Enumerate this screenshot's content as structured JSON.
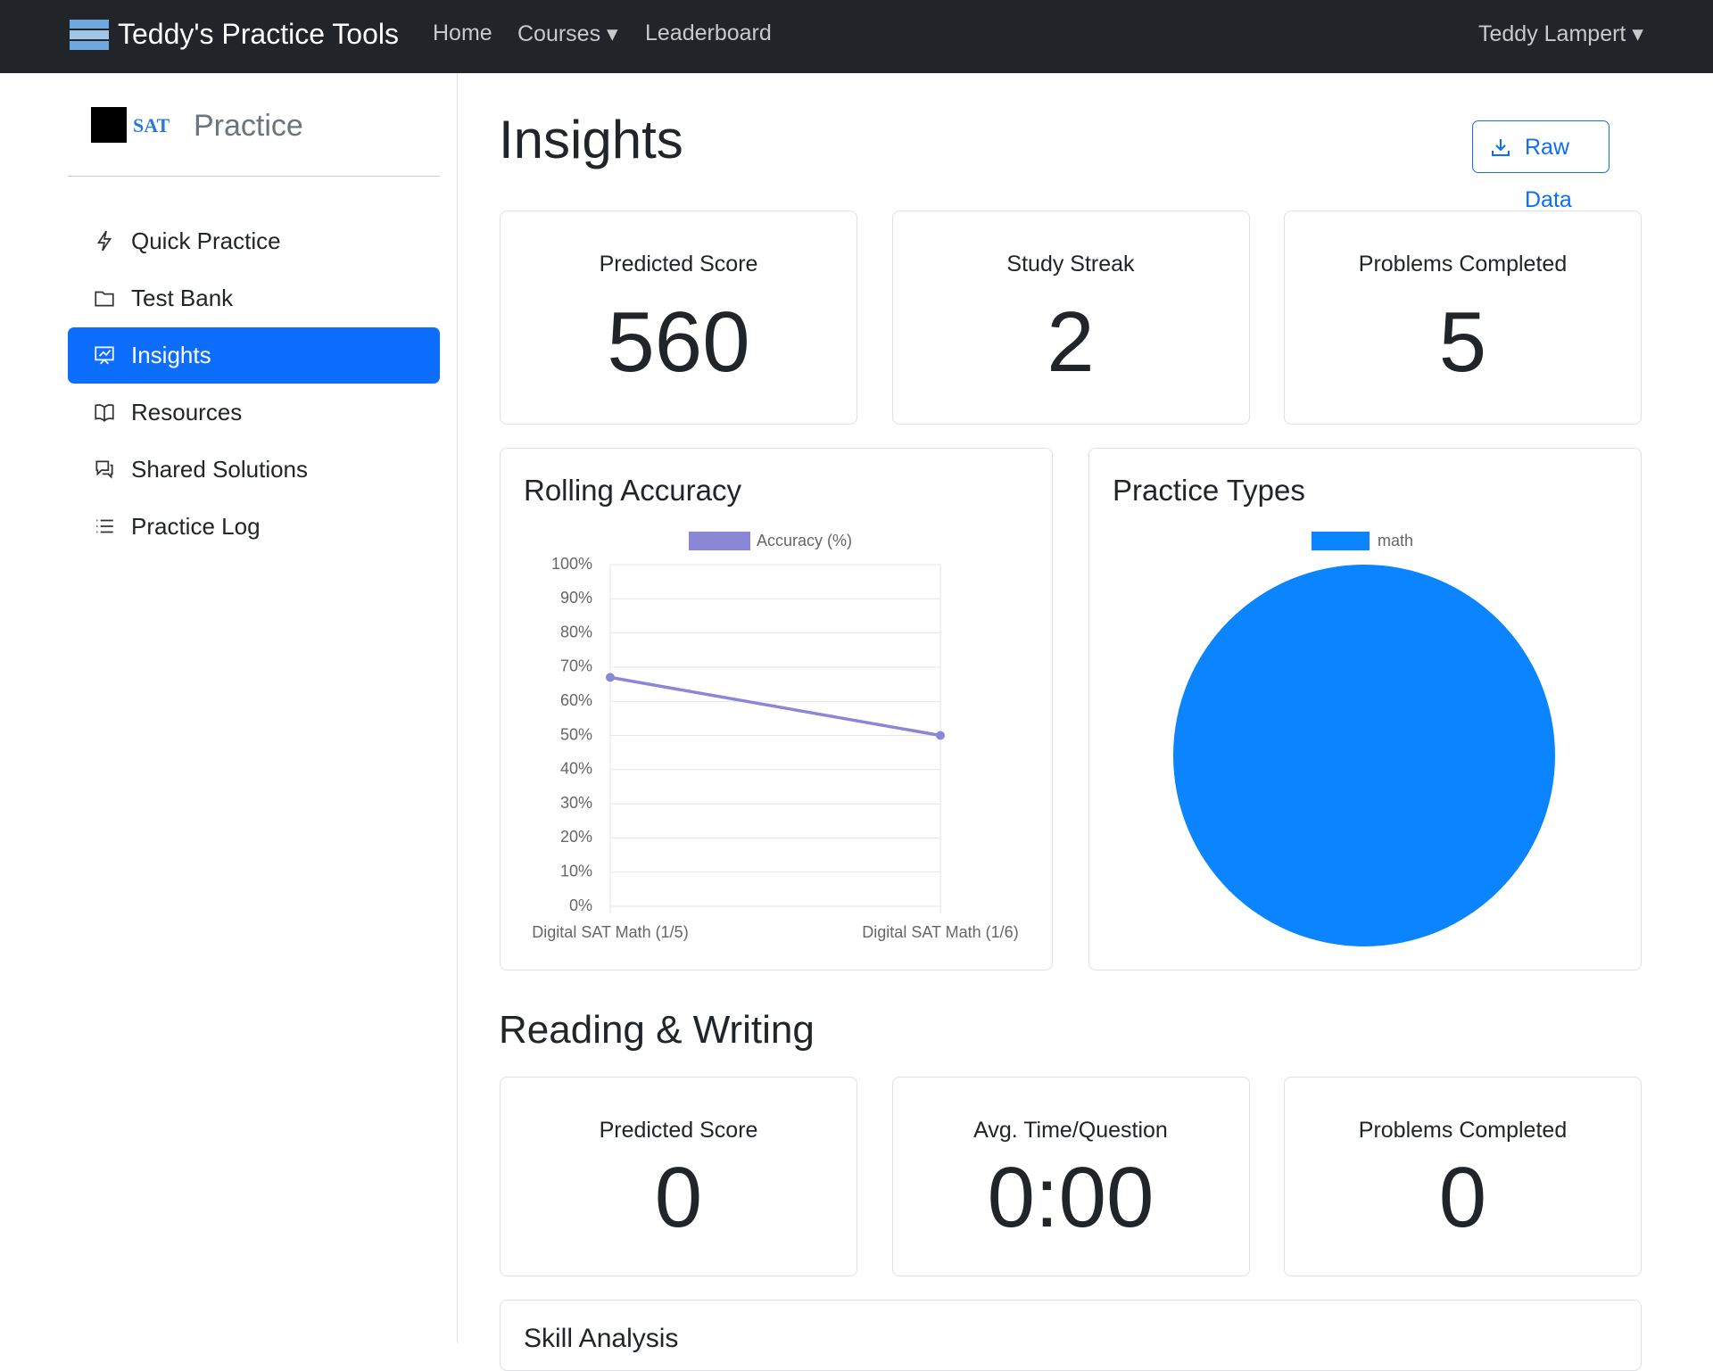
{
  "navbar": {
    "brand": "Teddy's Practice Tools",
    "links": [
      "Home",
      "Courses",
      "Leaderboard"
    ],
    "user": "Teddy Lampert"
  },
  "sidebar": {
    "logo": "SAT",
    "title": "Practice",
    "items": [
      "Quick Practice",
      "Test Bank",
      "Insights",
      "Resources",
      "Shared Solutions",
      "Practice Log"
    ]
  },
  "header": {
    "title": "Insights",
    "button": "Raw Data"
  },
  "overview_stats": [
    {
      "label": "Predicted Score",
      "value": "560"
    },
    {
      "label": "Study Streak",
      "value": "2"
    },
    {
      "label": "Problems Completed",
      "value": "5"
    }
  ],
  "chart_data": [
    {
      "type": "line",
      "title": "Rolling Accuracy",
      "categories": [
        "Digital SAT Math (1/5)",
        "Digital SAT Math (1/6)"
      ],
      "series": [
        {
          "name": "Accuracy (%)",
          "color": "#8a88d6",
          "values": [
            67,
            50
          ]
        }
      ],
      "ylim": [
        0,
        100
      ],
      "yticks": [
        {
          "value": 0,
          "label": "0%"
        },
        {
          "value": 10,
          "label": "10%"
        },
        {
          "value": 20,
          "label": "20%"
        },
        {
          "value": 30,
          "label": "30%"
        },
        {
          "value": 40,
          "label": "40%"
        },
        {
          "value": 50,
          "label": "50%"
        },
        {
          "value": 60,
          "label": "60%"
        },
        {
          "value": 70,
          "label": "70%"
        },
        {
          "value": 80,
          "label": "80%"
        },
        {
          "value": 90,
          "label": "90%"
        },
        {
          "value": 100,
          "label": "100%"
        }
      ],
      "grid": true,
      "legend": "top"
    },
    {
      "type": "pie",
      "title": "Practice Types",
      "categories": [
        "math"
      ],
      "values": [
        100
      ],
      "colors": [
        "#0a84ff"
      ],
      "legend": "top"
    }
  ],
  "reading_writing": {
    "title": "Reading & Writing",
    "stats": [
      {
        "label": "Predicted Score",
        "value": "0"
      },
      {
        "label": "Avg. Time/Question",
        "value": "0:00"
      },
      {
        "label": "Problems Completed",
        "value": "0"
      }
    ]
  },
  "skill_analysis": {
    "title": "Skill Analysis"
  }
}
